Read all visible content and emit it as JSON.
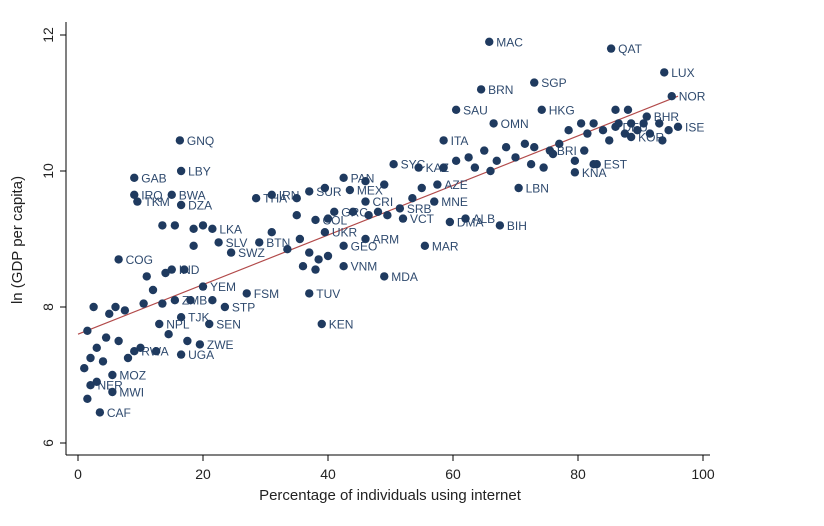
{
  "chart_data": {
    "type": "scatter",
    "title": "",
    "xlabel": "Percentage of individuals using internet",
    "ylabel": "ln (GDP per capita)",
    "xlim": [
      0,
      100
    ],
    "ylim": [
      6,
      12
    ],
    "xticks": [
      0,
      20,
      40,
      60,
      80,
      100
    ],
    "yticks": [
      6,
      8,
      10,
      12
    ],
    "fit_line": {
      "x": [
        0,
        96
      ],
      "y": [
        7.6,
        11.1
      ]
    },
    "points": [
      {
        "label": "MAC",
        "x": 65.8,
        "y": 11.9
      },
      {
        "label": "QAT",
        "x": 85.3,
        "y": 11.8
      },
      {
        "label": "LUX",
        "x": 93.8,
        "y": 11.45
      },
      {
        "label": "NOR",
        "x": 95.0,
        "y": 11.1
      },
      {
        "label": "SGP",
        "x": 73.0,
        "y": 11.3
      },
      {
        "label": "BRN",
        "x": 64.5,
        "y": 11.2
      },
      {
        "label": "SAU",
        "x": 60.5,
        "y": 10.9
      },
      {
        "label": "HKG",
        "x": 74.2,
        "y": 10.9
      },
      {
        "label": "OMN",
        "x": 66.5,
        "y": 10.7
      },
      {
        "label": "ITA",
        "x": 58.5,
        "y": 10.45
      },
      {
        "label": "BHR",
        "x": 91.0,
        "y": 10.8
      },
      {
        "label": "GNQ",
        "x": 16.3,
        "y": 10.45
      },
      {
        "label": "LBY",
        "x": 16.5,
        "y": 10.0
      },
      {
        "label": "GAB",
        "x": 9.0,
        "y": 9.9
      },
      {
        "label": "BWA",
        "x": 15.0,
        "y": 9.65
      },
      {
        "label": "IRQ",
        "x": 9.0,
        "y": 9.65
      },
      {
        "label": "TKM",
        "x": 9.5,
        "y": 9.55
      },
      {
        "label": "DZA",
        "x": 16.5,
        "y": 9.5
      },
      {
        "label": "THA",
        "x": 28.5,
        "y": 9.6
      },
      {
        "label": "IRN",
        "x": 31.0,
        "y": 9.65
      },
      {
        "label": "SUR",
        "x": 37.0,
        "y": 9.7
      },
      {
        "label": "MEX",
        "x": 43.5,
        "y": 9.72
      },
      {
        "label": "PAN",
        "x": 42.5,
        "y": 9.9
      },
      {
        "label": "SYC",
        "x": 50.5,
        "y": 10.1
      },
      {
        "label": "KAZ",
        "x": 54.5,
        "y": 10.05
      },
      {
        "label": "AZE",
        "x": 57.5,
        "y": 9.8
      },
      {
        "label": "MNE",
        "x": 57.0,
        "y": 9.55
      },
      {
        "label": "CRI",
        "x": 46.0,
        "y": 9.55
      },
      {
        "label": "SRB",
        "x": 51.5,
        "y": 9.45
      },
      {
        "label": "VCT",
        "x": 52.0,
        "y": 9.3
      },
      {
        "label": "DMA",
        "x": 59.5,
        "y": 9.25
      },
      {
        "label": "ALB",
        "x": 62.0,
        "y": 9.3
      },
      {
        "label": "BIH",
        "x": 67.5,
        "y": 9.2
      },
      {
        "label": "LBN",
        "x": 70.5,
        "y": 9.75
      },
      {
        "label": "KNA",
        "x": 79.5,
        "y": 9.98
      },
      {
        "label": "EST",
        "x": 83.0,
        "y": 10.1
      },
      {
        "label": "KOR",
        "x": 88.5,
        "y": 10.5
      },
      {
        "label": "DEU",
        "x": 86.0,
        "y": 10.65
      },
      {
        "label": "ISE",
        "x": 96.0,
        "y": 10.65
      },
      {
        "label": "BRI",
        "x": 75.5,
        "y": 10.3
      },
      {
        "label": "GRC",
        "x": 41.0,
        "y": 9.4
      },
      {
        "label": "COL",
        "x": 38.0,
        "y": 9.28
      },
      {
        "label": "LKA",
        "x": 21.5,
        "y": 9.15
      },
      {
        "label": "ARM",
        "x": 46.0,
        "y": 9.0
      },
      {
        "label": "GEO",
        "x": 42.5,
        "y": 8.9
      },
      {
        "label": "MAR",
        "x": 55.5,
        "y": 8.9
      },
      {
        "label": "UKR",
        "x": 39.5,
        "y": 9.1
      },
      {
        "label": "SLV",
        "x": 22.5,
        "y": 8.95
      },
      {
        "label": "SWZ",
        "x": 24.5,
        "y": 8.8
      },
      {
        "label": "BTN",
        "x": 29.0,
        "y": 8.95
      },
      {
        "label": "VNM",
        "x": 42.5,
        "y": 8.6
      },
      {
        "label": "MDA",
        "x": 49.0,
        "y": 8.45
      },
      {
        "label": "COG",
        "x": 6.5,
        "y": 8.7
      },
      {
        "label": "IND",
        "x": 15.0,
        "y": 8.55
      },
      {
        "label": "YEM",
        "x": 20.0,
        "y": 8.3
      },
      {
        "label": "FSM",
        "x": 27.0,
        "y": 8.2
      },
      {
        "label": "TUV",
        "x": 37.0,
        "y": 8.2
      },
      {
        "label": "KEN",
        "x": 39.0,
        "y": 7.75
      },
      {
        "label": "ZMB",
        "x": 15.5,
        "y": 8.1
      },
      {
        "label": "STP",
        "x": 23.5,
        "y": 8.0
      },
      {
        "label": "TJK",
        "x": 16.5,
        "y": 7.85
      },
      {
        "label": "NPL",
        "x": 13.0,
        "y": 7.75
      },
      {
        "label": "SEN",
        "x": 21.0,
        "y": 7.75
      },
      {
        "label": "ZWE",
        "x": 19.5,
        "y": 7.45
      },
      {
        "label": "RWA",
        "x": 9.0,
        "y": 7.35
      },
      {
        "label": "UGA",
        "x": 16.5,
        "y": 7.3
      },
      {
        "label": "MOZ",
        "x": 5.5,
        "y": 7.0
      },
      {
        "label": "NER",
        "x": 2.0,
        "y": 6.85
      },
      {
        "label": "MWI",
        "x": 5.5,
        "y": 6.75
      },
      {
        "label": "CAF",
        "x": 3.5,
        "y": 6.45
      },
      {
        "label": "",
        "x": 1.5,
        "y": 7.65
      },
      {
        "label": "",
        "x": 2.5,
        "y": 8.0
      },
      {
        "label": "",
        "x": 5.0,
        "y": 7.9
      },
      {
        "label": "",
        "x": 6.0,
        "y": 8.0
      },
      {
        "label": "",
        "x": 7.5,
        "y": 7.95
      },
      {
        "label": "",
        "x": 4.5,
        "y": 7.55
      },
      {
        "label": "",
        "x": 6.5,
        "y": 7.5
      },
      {
        "label": "",
        "x": 3.0,
        "y": 7.4
      },
      {
        "label": "",
        "x": 1.0,
        "y": 7.1
      },
      {
        "label": "",
        "x": 2.0,
        "y": 7.25
      },
      {
        "label": "",
        "x": 4.0,
        "y": 7.2
      },
      {
        "label": "",
        "x": 8.0,
        "y": 7.25
      },
      {
        "label": "",
        "x": 10.0,
        "y": 7.4
      },
      {
        "label": "",
        "x": 12.5,
        "y": 7.35
      },
      {
        "label": "",
        "x": 3.0,
        "y": 6.9
      },
      {
        "label": "",
        "x": 1.5,
        "y": 6.65
      },
      {
        "label": "",
        "x": 11.0,
        "y": 8.45
      },
      {
        "label": "",
        "x": 12.0,
        "y": 8.25
      },
      {
        "label": "",
        "x": 14.0,
        "y": 8.5
      },
      {
        "label": "",
        "x": 17.0,
        "y": 8.55
      },
      {
        "label": "",
        "x": 10.5,
        "y": 8.05
      },
      {
        "label": "",
        "x": 13.5,
        "y": 8.05
      },
      {
        "label": "",
        "x": 18.0,
        "y": 8.1
      },
      {
        "label": "",
        "x": 21.5,
        "y": 8.1
      },
      {
        "label": "",
        "x": 14.5,
        "y": 7.6
      },
      {
        "label": "",
        "x": 17.5,
        "y": 7.5
      },
      {
        "label": "",
        "x": 15.5,
        "y": 9.2
      },
      {
        "label": "",
        "x": 18.5,
        "y": 9.15
      },
      {
        "label": "",
        "x": 20.0,
        "y": 9.2
      },
      {
        "label": "",
        "x": 13.5,
        "y": 9.2
      },
      {
        "label": "",
        "x": 18.5,
        "y": 8.9
      },
      {
        "label": "",
        "x": 31.0,
        "y": 9.1
      },
      {
        "label": "",
        "x": 33.5,
        "y": 8.85
      },
      {
        "label": "",
        "x": 35.5,
        "y": 9.0
      },
      {
        "label": "",
        "x": 37.0,
        "y": 8.8
      },
      {
        "label": "",
        "x": 38.5,
        "y": 8.7
      },
      {
        "label": "",
        "x": 36.0,
        "y": 8.6
      },
      {
        "label": "",
        "x": 38.0,
        "y": 8.55
      },
      {
        "label": "",
        "x": 40.0,
        "y": 8.75
      },
      {
        "label": "",
        "x": 35.0,
        "y": 9.35
      },
      {
        "label": "",
        "x": 40.0,
        "y": 9.3
      },
      {
        "label": "",
        "x": 44.0,
        "y": 9.4
      },
      {
        "label": "",
        "x": 46.5,
        "y": 9.35
      },
      {
        "label": "",
        "x": 48.0,
        "y": 9.4
      },
      {
        "label": "",
        "x": 49.5,
        "y": 9.35
      },
      {
        "label": "",
        "x": 53.5,
        "y": 9.6
      },
      {
        "label": "",
        "x": 55.0,
        "y": 9.75
      },
      {
        "label": "",
        "x": 49.0,
        "y": 9.8
      },
      {
        "label": "",
        "x": 46.0,
        "y": 9.85
      },
      {
        "label": "",
        "x": 39.5,
        "y": 9.75
      },
      {
        "label": "",
        "x": 35.0,
        "y": 9.6
      },
      {
        "label": "",
        "x": 58.5,
        "y": 10.05
      },
      {
        "label": "",
        "x": 60.5,
        "y": 10.15
      },
      {
        "label": "",
        "x": 62.5,
        "y": 10.2
      },
      {
        "label": "",
        "x": 63.5,
        "y": 10.05
      },
      {
        "label": "",
        "x": 65.0,
        "y": 10.3
      },
      {
        "label": "",
        "x": 66.0,
        "y": 10.0
      },
      {
        "label": "",
        "x": 67.0,
        "y": 10.15
      },
      {
        "label": "",
        "x": 68.5,
        "y": 10.35
      },
      {
        "label": "",
        "x": 70.0,
        "y": 10.2
      },
      {
        "label": "",
        "x": 71.5,
        "y": 10.4
      },
      {
        "label": "",
        "x": 72.5,
        "y": 10.1
      },
      {
        "label": "",
        "x": 73.0,
        "y": 10.35
      },
      {
        "label": "",
        "x": 74.5,
        "y": 10.05
      },
      {
        "label": "",
        "x": 76.0,
        "y": 10.25
      },
      {
        "label": "",
        "x": 77.0,
        "y": 10.4
      },
      {
        "label": "",
        "x": 78.5,
        "y": 10.6
      },
      {
        "label": "",
        "x": 80.5,
        "y": 10.7
      },
      {
        "label": "",
        "x": 81.5,
        "y": 10.55
      },
      {
        "label": "",
        "x": 82.5,
        "y": 10.7
      },
      {
        "label": "",
        "x": 84.0,
        "y": 10.6
      },
      {
        "label": "",
        "x": 85.0,
        "y": 10.45
      },
      {
        "label": "",
        "x": 86.5,
        "y": 10.7
      },
      {
        "label": "",
        "x": 87.5,
        "y": 10.55
      },
      {
        "label": "",
        "x": 88.5,
        "y": 10.7
      },
      {
        "label": "",
        "x": 89.5,
        "y": 10.6
      },
      {
        "label": "",
        "x": 90.5,
        "y": 10.7
      },
      {
        "label": "",
        "x": 91.5,
        "y": 10.55
      },
      {
        "label": "",
        "x": 93.0,
        "y": 10.7
      },
      {
        "label": "",
        "x": 94.5,
        "y": 10.6
      },
      {
        "label": "",
        "x": 93.5,
        "y": 10.45
      },
      {
        "label": "",
        "x": 81.0,
        "y": 10.3
      },
      {
        "label": "",
        "x": 79.5,
        "y": 10.15
      },
      {
        "label": "",
        "x": 86.0,
        "y": 10.9
      },
      {
        "label": "",
        "x": 88.0,
        "y": 10.9
      },
      {
        "label": "",
        "x": 82.5,
        "y": 10.1
      }
    ]
  }
}
